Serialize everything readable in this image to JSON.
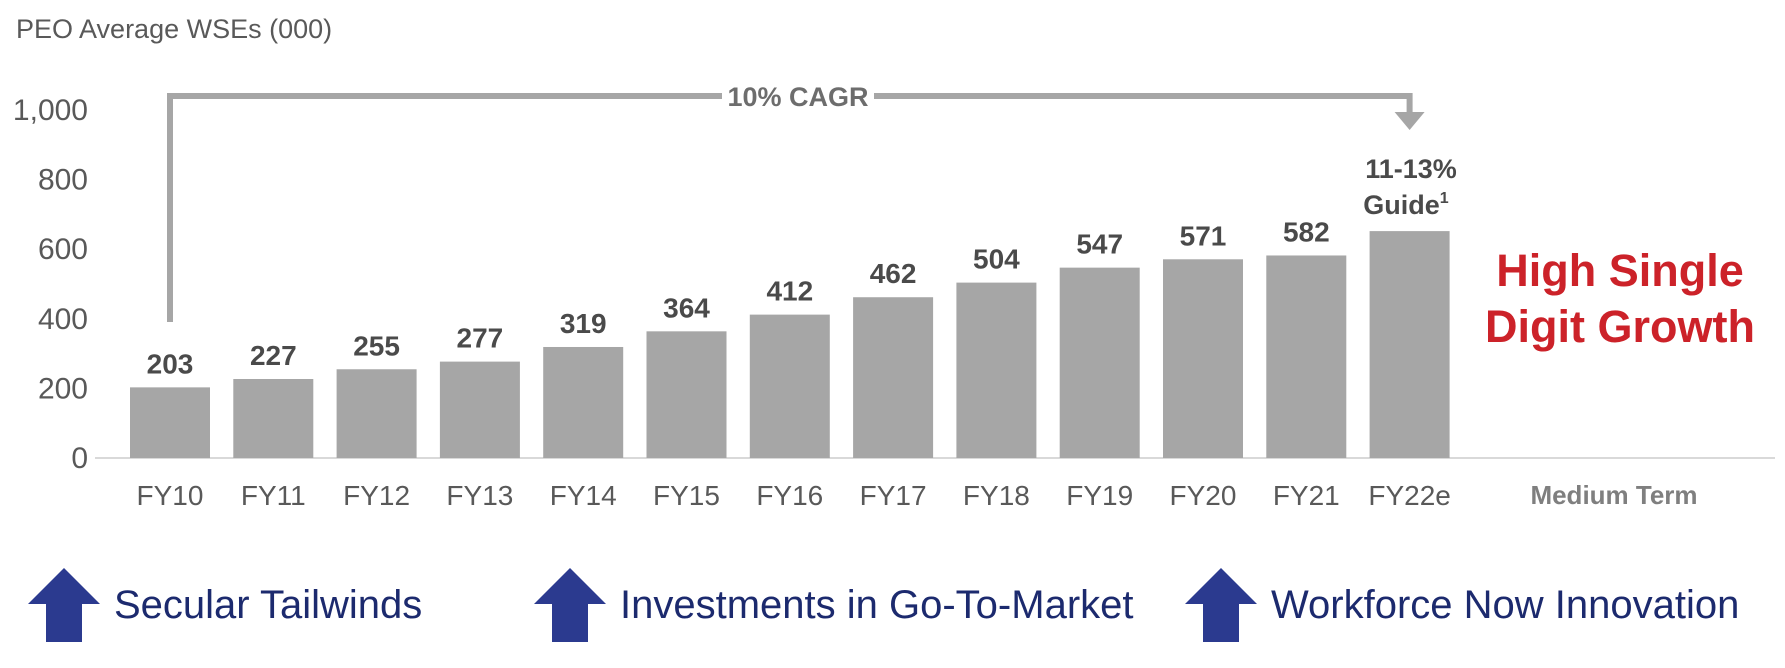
{
  "colors": {
    "bar": "#a6a6a6",
    "axis_text": "#595959",
    "value_text": "#4a4a4a",
    "cagr_line": "#a6a6a6",
    "highlight_red": "#cc2229",
    "driver_arrow": "#2b3a8f",
    "driver_text": "#1c2a6e"
  },
  "chart_data": {
    "type": "bar",
    "title": "PEO Average WSEs (000)",
    "categories": [
      "FY10",
      "FY11",
      "FY12",
      "FY13",
      "FY14",
      "FY15",
      "FY16",
      "FY17",
      "FY18",
      "FY19",
      "FY20",
      "FY21",
      "FY22e"
    ],
    "values": [
      203,
      227,
      255,
      277,
      319,
      364,
      412,
      462,
      504,
      547,
      571,
      582,
      652
    ],
    "data_labels": [
      "203",
      "227",
      "255",
      "277",
      "319",
      "364",
      "412",
      "462",
      "504",
      "547",
      "571",
      "582",
      ""
    ],
    "ylim": [
      0,
      1000
    ],
    "yticks": [
      0,
      200,
      400,
      600,
      800,
      1000
    ],
    "ytick_labels": [
      "0",
      "200",
      "400",
      "600",
      "800",
      "1,000"
    ],
    "xlabel": "",
    "ylabel": "",
    "cagr_annotation": "10% CAGR",
    "guide_label_line1": "11-13%",
    "guide_label_line2": "Guide",
    "guide_superscript": "1",
    "medium_term_category": "Medium Term",
    "medium_term_text_line1": "High Single",
    "medium_term_text_line2": "Digit Growth"
  },
  "drivers": [
    {
      "label": "Secular Tailwinds",
      "icon": "up-arrow-icon"
    },
    {
      "label": "Investments in Go-To-Market",
      "icon": "up-arrow-icon"
    },
    {
      "label": "Workforce Now Innovation",
      "icon": "up-arrow-icon"
    }
  ]
}
